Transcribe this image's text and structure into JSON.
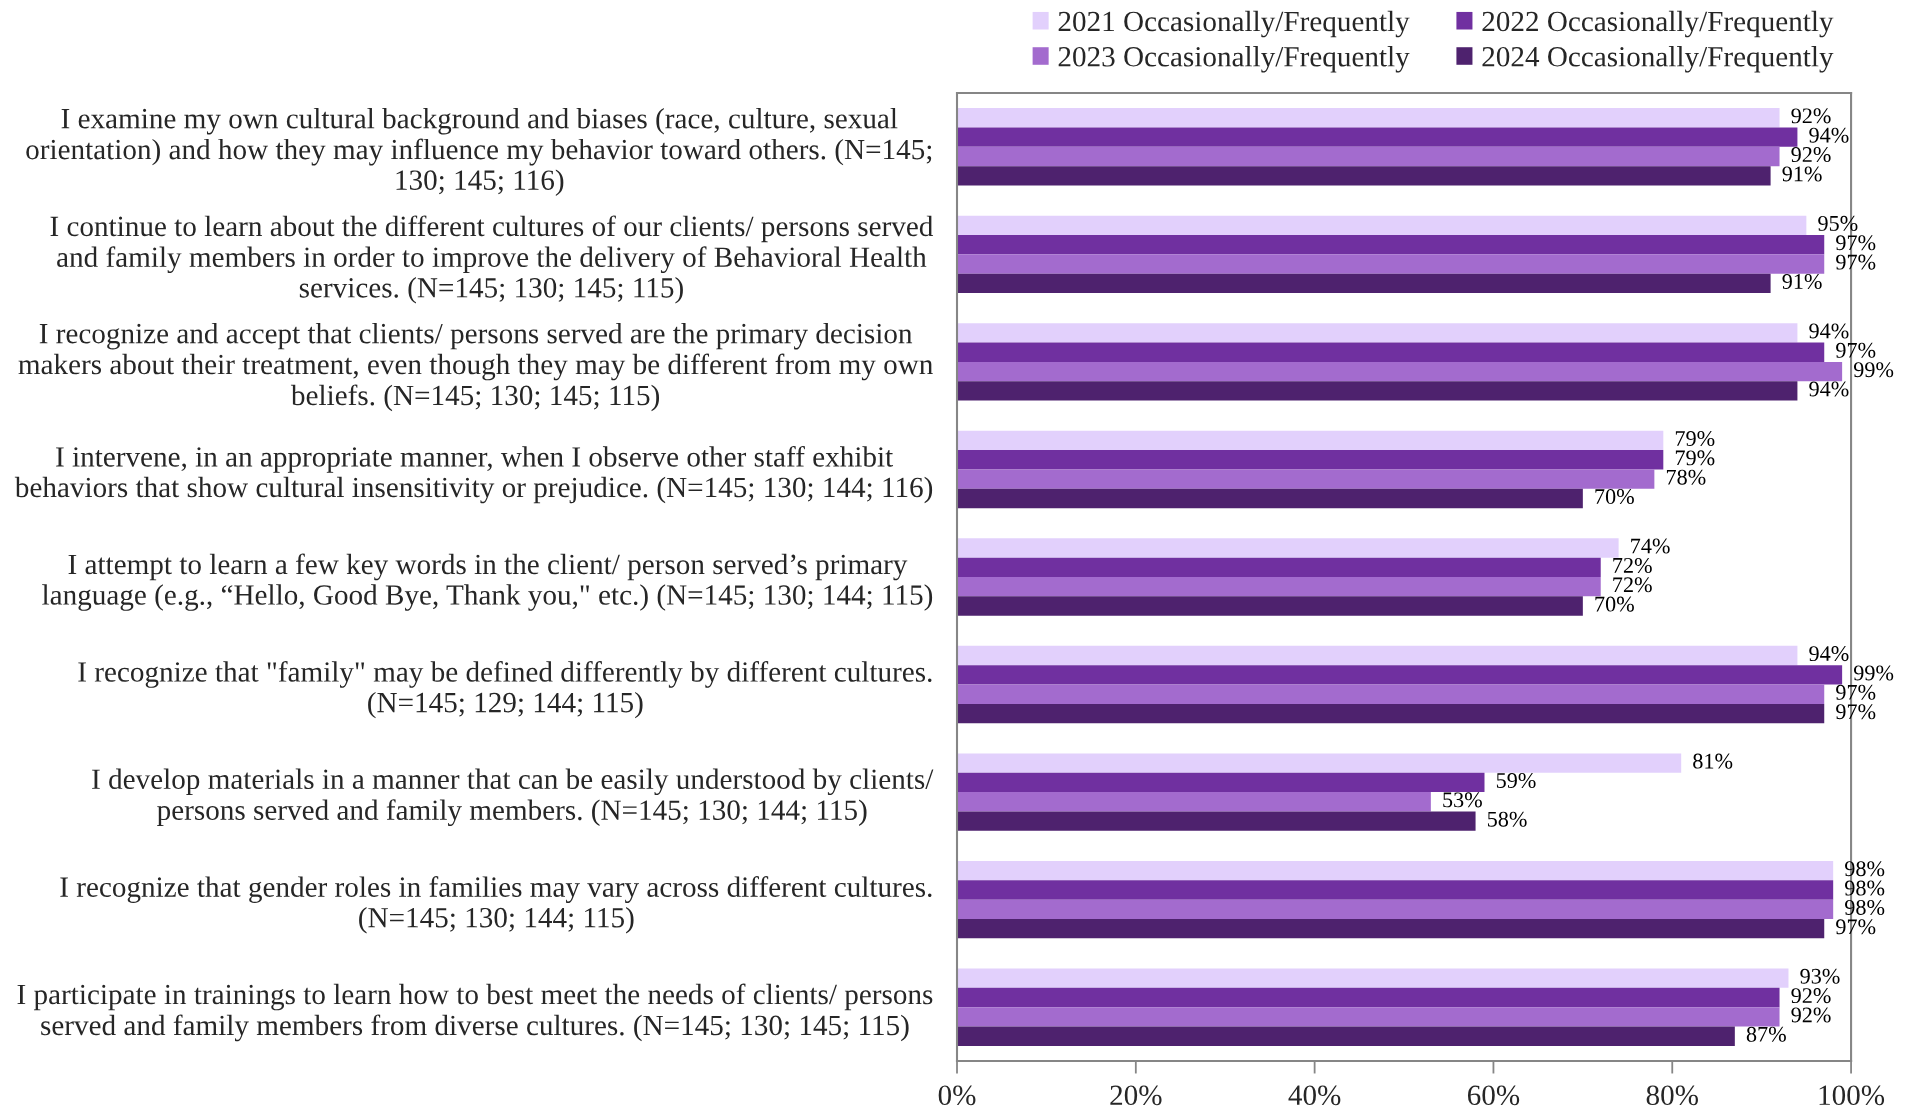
{
  "chart_data": {
    "type": "bar",
    "orientation": "horizontal",
    "categories": [
      "I examine my own cultural background and biases (race, culture, sexual\norientation) and how they may influence my behavior toward others. (N=145;\n130; 145; 116)",
      "I continue to learn about the different cultures of our clients/ persons served\nand family members in order to improve the delivery of Behavioral Health\nservices. (N=145; 130; 145; 115)",
      "I recognize and accept that clients/ persons served are the primary decision\nmakers about their treatment, even though they may be different from my own\nbeliefs. (N=145; 130; 145; 115)",
      "I intervene, in an appropriate manner, when I observe other staff exhibit\nbehaviors that show cultural insensitivity or prejudice. (N=145; 130; 144; 116)",
      "I attempt to learn a few key words in the client/ person served’s primary\nlanguage (e.g., “Hello, Good Bye, Thank you,\" etc.) (N=145; 130; 144; 115)",
      "I recognize that \"family\" may be defined differently by different cultures.\n(N=145; 129; 144; 115)",
      "I develop materials in a manner that can be easily understood by clients/\npersons served and family members. (N=145; 130; 144; 115)",
      "I recognize that gender roles in families may vary across different cultures.\n(N=145; 130; 144; 115)",
      "I participate in trainings to learn how to best meet the needs of clients/ persons\nserved and family members from diverse cultures. (N=145; 130; 145; 115)"
    ],
    "series": [
      {
        "name": "2021 Occasionally/Frequently",
        "color": "#e2d0fc",
        "values": [
          92,
          95,
          94,
          79,
          74,
          94,
          81,
          98,
          93
        ],
        "value_labels": [
          "92%",
          "95%",
          "94%",
          "79%",
          "74%",
          "94%",
          "81%",
          "98%",
          "93%"
        ]
      },
      {
        "name": "2022 Occasionally/Frequently",
        "color": "#7030a0",
        "values": [
          94,
          97,
          97,
          79,
          72,
          99,
          59,
          98,
          92
        ],
        "value_labels": [
          "94%",
          "97%",
          "97%",
          "79%",
          "72%",
          "99%",
          "59%",
          "98%",
          "92%"
        ]
      },
      {
        "name": "2023 Occasionally/Frequently",
        "color": "#a36bce",
        "values": [
          92,
          97,
          99,
          78,
          72,
          97,
          53,
          98,
          92
        ],
        "value_labels": [
          "92%",
          "97%",
          "99%",
          "78%",
          "72%",
          "97%",
          "53%",
          "98%",
          "92%"
        ]
      },
      {
        "name": "2024 Occasionally/Frequently",
        "color": "#4e226e",
        "values": [
          91,
          91,
          94,
          70,
          70,
          97,
          58,
          97,
          87
        ],
        "value_labels": [
          "91%",
          "91%",
          "94%",
          "70%",
          "70%",
          "97%",
          "58%",
          "97%",
          "87%"
        ]
      }
    ],
    "xlim": [
      0,
      100
    ],
    "xticks": [
      {
        "value": 0,
        "label": "0%"
      },
      {
        "value": 20,
        "label": "20%"
      },
      {
        "value": 40,
        "label": "40%"
      },
      {
        "value": 60,
        "label": "60%"
      },
      {
        "value": 80,
        "label": "80%"
      },
      {
        "value": 100,
        "label": "100%"
      }
    ],
    "grid": false,
    "legend": "top right"
  }
}
